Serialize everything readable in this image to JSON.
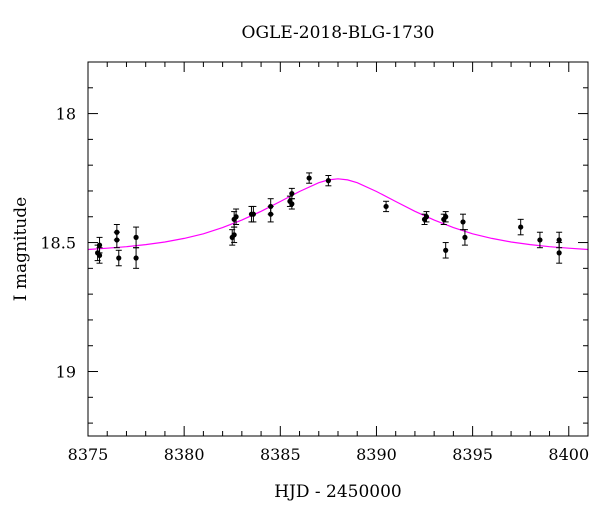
{
  "chart_data": {
    "type": "scatter",
    "title": "OGLE-2018-BLG-1730",
    "xlabel": "HJD - 2450000",
    "ylabel": "I magnitude",
    "xlim": [
      8375,
      8401
    ],
    "ylim": [
      19.25,
      17.8
    ],
    "y_inverted": true,
    "x_ticks": [
      8375,
      8380,
      8385,
      8390,
      8395,
      8400
    ],
    "x_minor_step": 1,
    "y_ticks": [
      18,
      18.5,
      19
    ],
    "y_minor_step": 0.1,
    "grid": false,
    "legend": "none",
    "series": [
      {
        "kind": "points",
        "color": "#000000",
        "points": [
          {
            "x": 8375.5,
            "y": 18.54,
            "err": 0.03
          },
          {
            "x": 8375.6,
            "y": 18.51,
            "err": 0.03
          },
          {
            "x": 8375.6,
            "y": 18.55,
            "err": 0.03
          },
          {
            "x": 8376.5,
            "y": 18.46,
            "err": 0.03
          },
          {
            "x": 8376.5,
            "y": 18.49,
            "err": 0.03
          },
          {
            "x": 8376.6,
            "y": 18.56,
            "err": 0.03
          },
          {
            "x": 8377.5,
            "y": 18.48,
            "err": 0.04
          },
          {
            "x": 8377.5,
            "y": 18.56,
            "err": 0.04
          },
          {
            "x": 8382.5,
            "y": 18.48,
            "err": 0.03
          },
          {
            "x": 8382.6,
            "y": 18.47,
            "err": 0.03
          },
          {
            "x": 8382.6,
            "y": 18.41,
            "err": 0.03
          },
          {
            "x": 8382.7,
            "y": 18.4,
            "err": 0.03
          },
          {
            "x": 8383.5,
            "y": 18.39,
            "err": 0.03
          },
          {
            "x": 8383.6,
            "y": 18.39,
            "err": 0.03
          },
          {
            "x": 8384.5,
            "y": 18.39,
            "err": 0.03
          },
          {
            "x": 8384.5,
            "y": 18.36,
            "err": 0.03
          },
          {
            "x": 8385.5,
            "y": 18.34,
            "err": 0.02
          },
          {
            "x": 8385.6,
            "y": 18.35,
            "err": 0.02
          },
          {
            "x": 8385.6,
            "y": 18.31,
            "err": 0.02
          },
          {
            "x": 8386.5,
            "y": 18.25,
            "err": 0.02
          },
          {
            "x": 8387.5,
            "y": 18.26,
            "err": 0.02
          },
          {
            "x": 8390.5,
            "y": 18.36,
            "err": 0.02
          },
          {
            "x": 8392.5,
            "y": 18.41,
            "err": 0.02
          },
          {
            "x": 8392.6,
            "y": 18.4,
            "err": 0.02
          },
          {
            "x": 8393.5,
            "y": 18.41,
            "err": 0.02
          },
          {
            "x": 8393.6,
            "y": 18.4,
            "err": 0.02
          },
          {
            "x": 8393.6,
            "y": 18.53,
            "err": 0.03
          },
          {
            "x": 8394.5,
            "y": 18.42,
            "err": 0.03
          },
          {
            "x": 8394.6,
            "y": 18.48,
            "err": 0.03
          },
          {
            "x": 8397.5,
            "y": 18.44,
            "err": 0.03
          },
          {
            "x": 8398.5,
            "y": 18.49,
            "err": 0.03
          },
          {
            "x": 8399.5,
            "y": 18.49,
            "err": 0.03
          },
          {
            "x": 8399.5,
            "y": 18.54,
            "err": 0.04
          }
        ]
      },
      {
        "kind": "model",
        "color": "#ff00ff",
        "points": [
          {
            "x": 8375.0,
            "y": 18.527
          },
          {
            "x": 8376.0,
            "y": 18.522
          },
          {
            "x": 8377.0,
            "y": 18.516
          },
          {
            "x": 8378.0,
            "y": 18.508
          },
          {
            "x": 8379.0,
            "y": 18.498
          },
          {
            "x": 8380.0,
            "y": 18.484
          },
          {
            "x": 8381.0,
            "y": 18.466
          },
          {
            "x": 8382.0,
            "y": 18.442
          },
          {
            "x": 8383.0,
            "y": 18.413
          },
          {
            "x": 8384.0,
            "y": 18.379
          },
          {
            "x": 8385.0,
            "y": 18.341
          },
          {
            "x": 8386.0,
            "y": 18.302
          },
          {
            "x": 8387.0,
            "y": 18.268
          },
          {
            "x": 8387.5,
            "y": 18.257
          },
          {
            "x": 8388.0,
            "y": 18.253
          },
          {
            "x": 8388.5,
            "y": 18.257
          },
          {
            "x": 8389.0,
            "y": 18.268
          },
          {
            "x": 8390.0,
            "y": 18.302
          },
          {
            "x": 8391.0,
            "y": 18.341
          },
          {
            "x": 8392.0,
            "y": 18.379
          },
          {
            "x": 8393.0,
            "y": 18.413
          },
          {
            "x": 8394.0,
            "y": 18.442
          },
          {
            "x": 8395.0,
            "y": 18.466
          },
          {
            "x": 8396.0,
            "y": 18.484
          },
          {
            "x": 8397.0,
            "y": 18.498
          },
          {
            "x": 8398.0,
            "y": 18.508
          },
          {
            "x": 8399.0,
            "y": 18.516
          },
          {
            "x": 8400.0,
            "y": 18.522
          },
          {
            "x": 8401.0,
            "y": 18.527
          }
        ]
      }
    ]
  }
}
